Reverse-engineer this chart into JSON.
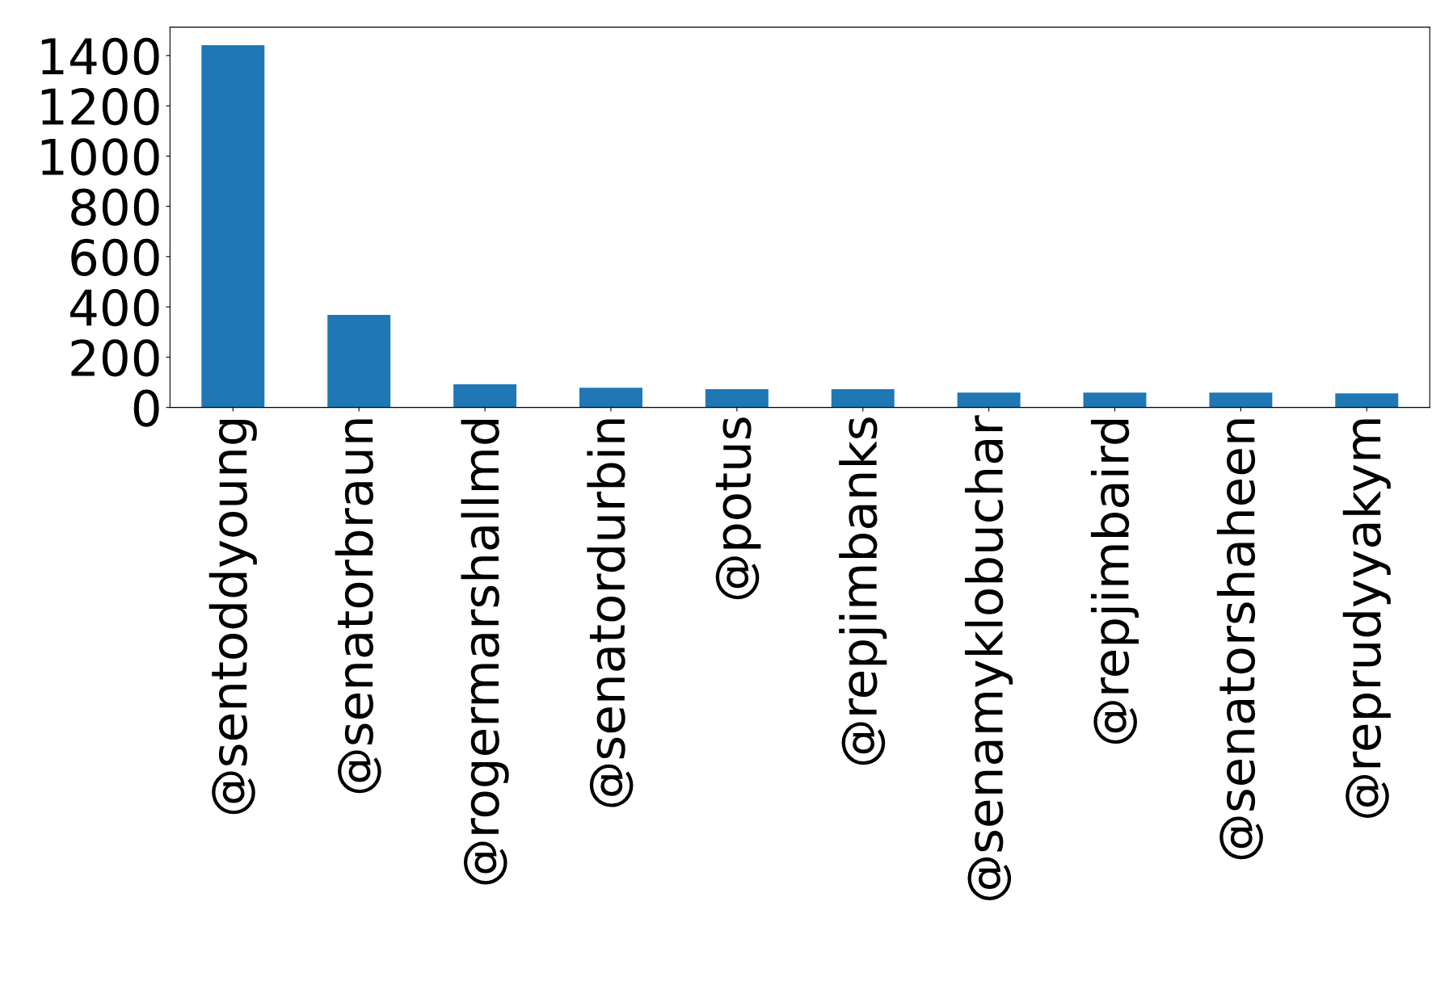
{
  "chart_data": {
    "type": "bar",
    "categories": [
      "@sentoddyoung",
      "@senatorbraun",
      "@rogermarshallmd",
      "@senatordurbin",
      "@potus",
      "@repjimbanks",
      "@senamyklobuchar",
      "@repjimbaird",
      "@senatorshaheen",
      "@reprudyyakym"
    ],
    "values": [
      1441,
      368,
      92,
      78,
      73,
      73,
      59,
      59,
      59,
      56
    ],
    "color": "#1f77b4",
    "ylim": [
      0,
      1513
    ],
    "yticks": [
      0,
      200,
      400,
      600,
      800,
      1000,
      1200,
      1400
    ],
    "grid": false,
    "legend": false
  }
}
